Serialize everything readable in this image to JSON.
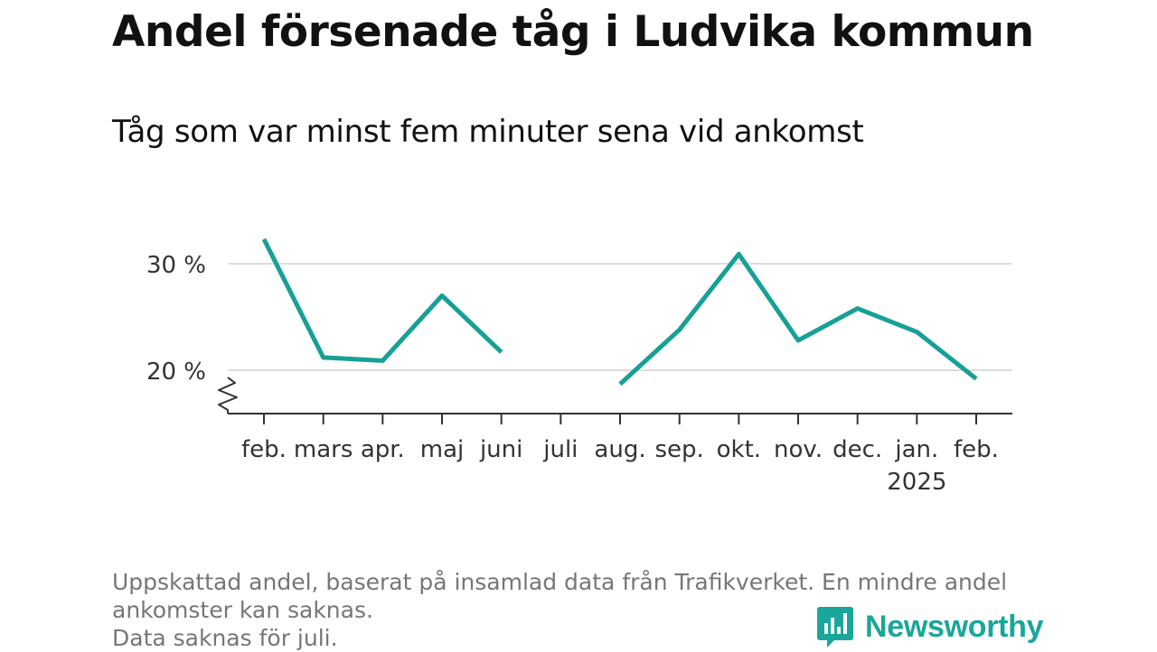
{
  "chart_data": {
    "type": "line",
    "title": "Andel försenade tåg i Ludvika kommun",
    "subtitle": "Tåg som var minst fem minuter sena vid ankomst",
    "categories": [
      "feb.",
      "mars",
      "apr.",
      "maj",
      "juni",
      "juli",
      "aug.",
      "sep.",
      "okt.",
      "nov.",
      "dec.",
      "jan.",
      "feb."
    ],
    "category_sublabels": [
      "",
      "",
      "",
      "",
      "",
      "",
      "",
      "",
      "",
      "",
      "",
      "2025",
      ""
    ],
    "series": [
      {
        "values": [
          32.3,
          21.2,
          20.9,
          27.0,
          21.7,
          null,
          18.7,
          23.8,
          30.9,
          22.8,
          25.8,
          23.6,
          19.2
        ]
      }
    ],
    "yticks": [
      20,
      30
    ],
    "ytick_labels": [
      "20 %",
      "30 %"
    ],
    "ylim": [
      16,
      34
    ],
    "grid": true,
    "line_color": "#16a096",
    "footnote": [
      "Uppskattad andel, baserat på insamlad data från Trafikverket. En mindre andel",
      "ankomster kan saknas.",
      "Data saknas för juli."
    ]
  },
  "brand": {
    "name": "Newsworthy",
    "icon": "newsworthy-logo-icon",
    "color": "#1aa69a"
  }
}
